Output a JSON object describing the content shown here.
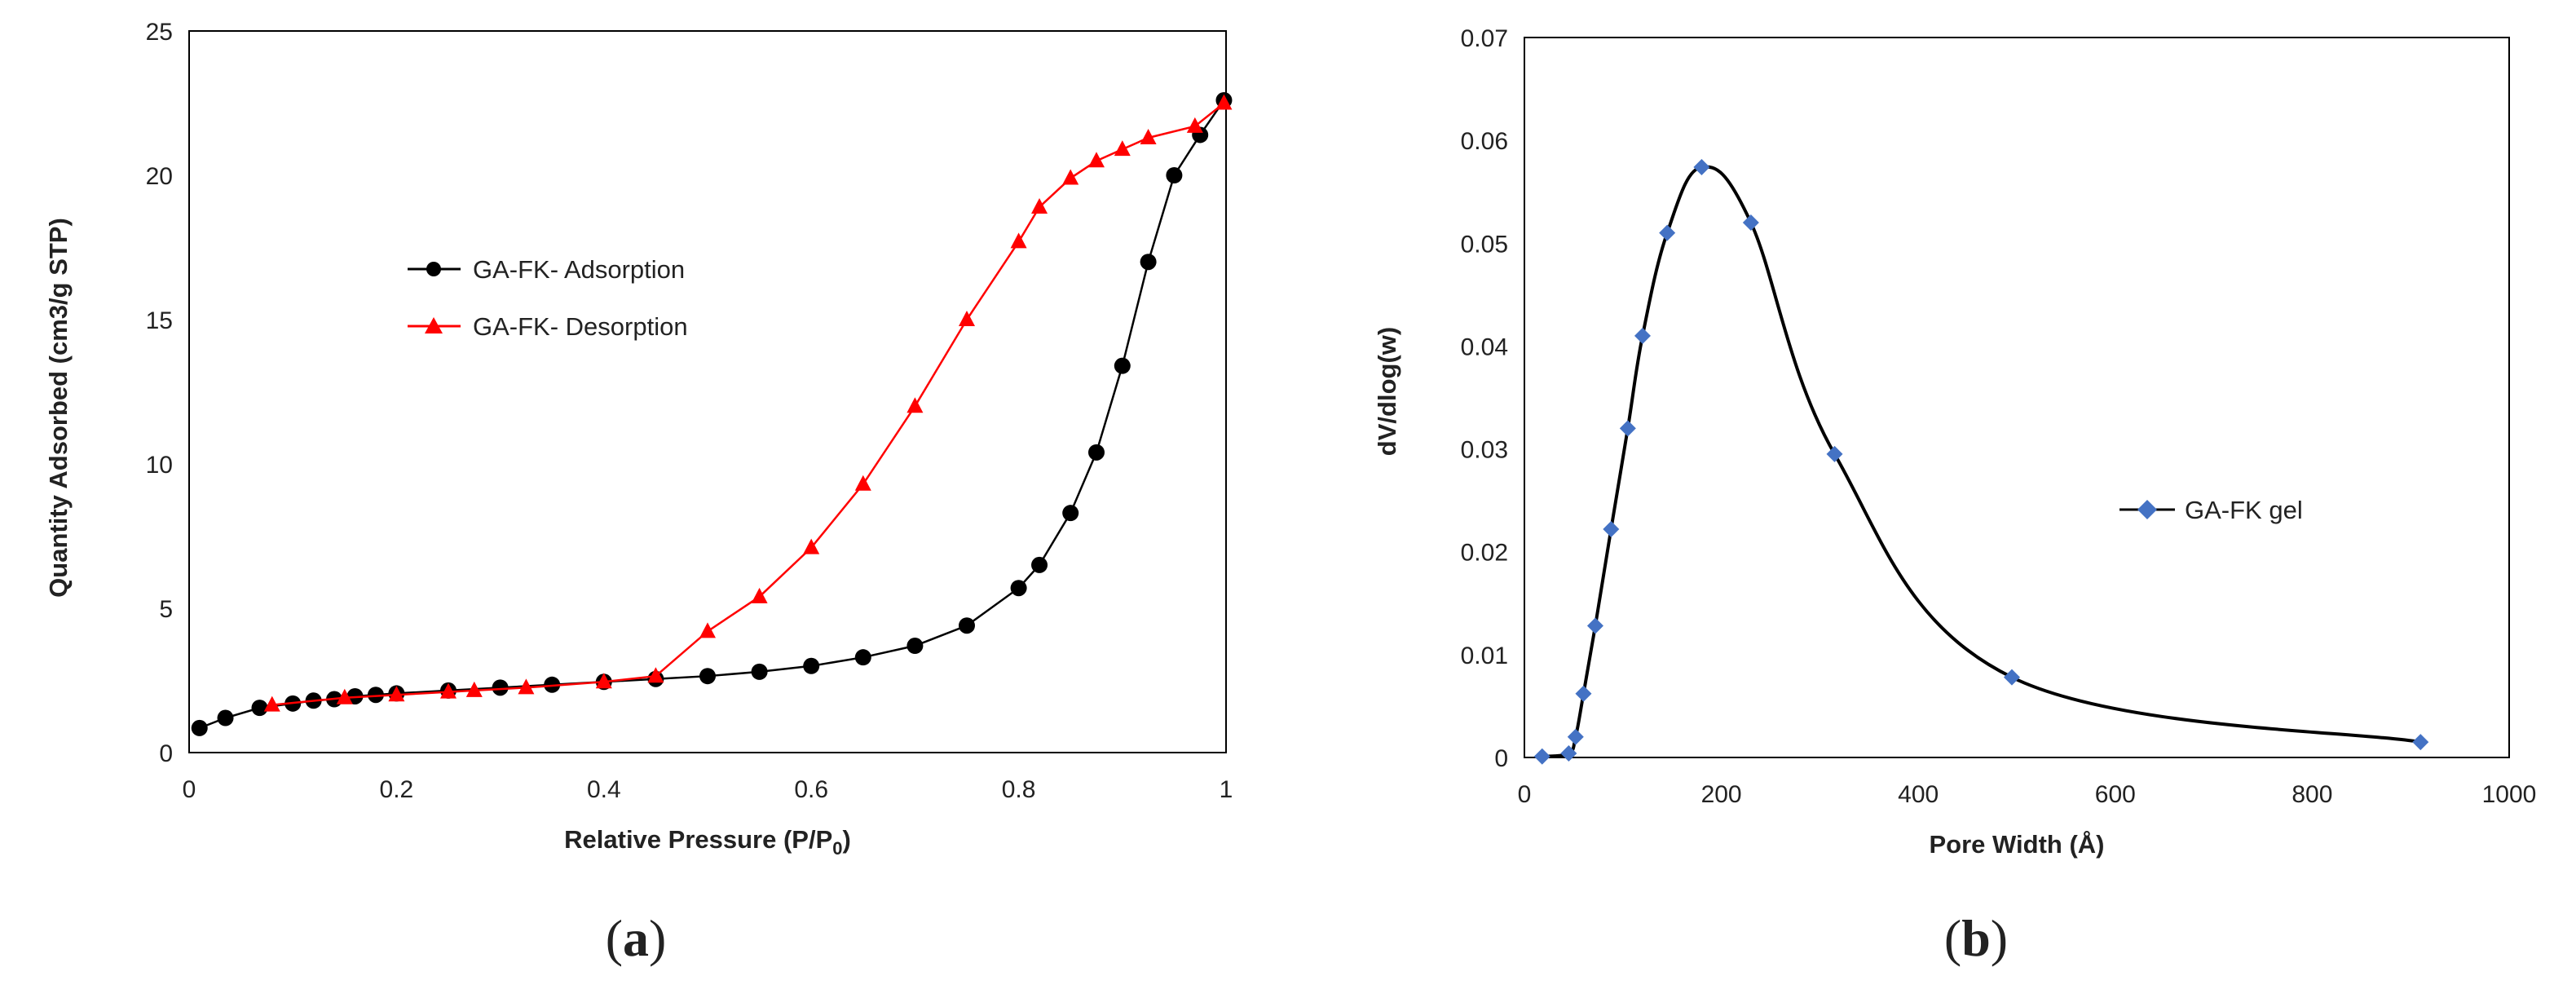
{
  "chart_data": [
    {
      "type": "line",
      "panel_label": "a",
      "xlabel": "Relative Pressure (P/P0)",
      "xlabel_main": "Relative Pressure (P/P",
      "xlabel_sub": "0",
      "xlabel_end": ")",
      "ylabel": "Quantity Adsorbed (cm3/g STP)",
      "xlim": [
        0,
        1
      ],
      "ylim": [
        0,
        25
      ],
      "xticks": [
        0,
        0.2,
        0.4,
        0.6,
        0.8,
        1
      ],
      "xtick_labels": [
        "0",
        "0.2",
        "0.4",
        "0.6",
        "0.8",
        "1"
      ],
      "yticks": [
        0,
        5,
        10,
        15,
        20,
        25
      ],
      "ytick_labels": [
        "0",
        "5",
        "10",
        "15",
        "20",
        "25"
      ],
      "grid": false,
      "legend_position": "center-left",
      "series": [
        {
          "name": "GA-FK- Adsorption",
          "color": "#000000",
          "marker": "circle",
          "x": [
            0.01,
            0.035,
            0.068,
            0.1,
            0.12,
            0.14,
            0.16,
            0.18,
            0.2,
            0.25,
            0.3,
            0.35,
            0.4,
            0.45,
            0.5,
            0.55,
            0.6,
            0.65,
            0.7,
            0.75,
            0.8,
            0.82,
            0.85,
            0.875,
            0.9,
            0.925,
            0.95,
            0.975,
            0.998
          ],
          "y": [
            0.85,
            1.2,
            1.55,
            1.7,
            1.8,
            1.85,
            1.95,
            2.0,
            2.05,
            2.15,
            2.25,
            2.35,
            2.45,
            2.55,
            2.65,
            2.8,
            3.0,
            3.3,
            3.7,
            4.4,
            5.7,
            6.5,
            8.3,
            10.4,
            13.4,
            17.0,
            20.0,
            21.4,
            22.6
          ]
        },
        {
          "name": "GA-FK- Desorption",
          "color": "#ff0000",
          "marker": "triangle",
          "x": [
            0.998,
            0.97,
            0.925,
            0.9,
            0.875,
            0.85,
            0.82,
            0.8,
            0.75,
            0.7,
            0.65,
            0.6,
            0.55,
            0.5,
            0.45,
            0.4,
            0.325,
            0.275,
            0.25,
            0.2,
            0.15,
            0.08
          ],
          "y": [
            22.5,
            21.7,
            21.3,
            20.9,
            20.5,
            19.9,
            18.9,
            17.7,
            15.0,
            12.0,
            9.3,
            7.1,
            5.4,
            4.2,
            2.65,
            2.45,
            2.25,
            2.15,
            2.1,
            2.0,
            1.9,
            1.65
          ]
        }
      ]
    },
    {
      "type": "line",
      "panel_label": "b",
      "xlabel": "Pore Width (Å)",
      "ylabel": "dV/dlog(w)",
      "xlim": [
        0,
        1000
      ],
      "ylim": [
        0,
        0.07
      ],
      "xticks": [
        0,
        200,
        400,
        600,
        800,
        1000
      ],
      "xtick_labels": [
        "0",
        "200",
        "400",
        "600",
        "800",
        "1000"
      ],
      "yticks": [
        0,
        0.01,
        0.02,
        0.03,
        0.04,
        0.05,
        0.06,
        0.07
      ],
      "ytick_labels": [
        "0",
        "0.01",
        "0.02",
        "0.03",
        "0.04",
        "0.05",
        "0.06",
        "0.07"
      ],
      "grid": false,
      "legend_position": "center-right",
      "series": [
        {
          "name": "GA-FK gel",
          "color": "#000000",
          "marker_color": "#4472c4",
          "marker": "diamond",
          "smooth": true,
          "x": [
            18,
            45,
            52,
            60,
            72,
            88,
            105,
            120,
            145,
            180,
            230,
            315,
            495,
            910
          ],
          "y": [
            0.0001,
            0.0004,
            0.002,
            0.0062,
            0.0128,
            0.0222,
            0.032,
            0.041,
            0.051,
            0.0574,
            0.052,
            0.0295,
            0.0078,
            0.0015
          ]
        }
      ]
    }
  ]
}
